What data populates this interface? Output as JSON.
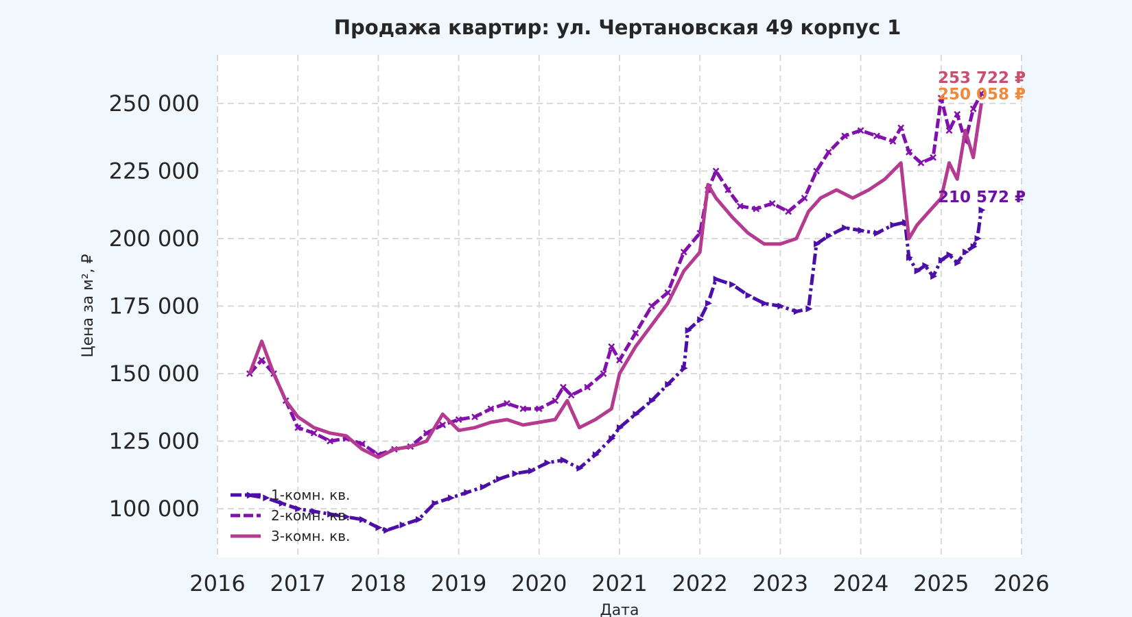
{
  "chart_data": {
    "type": "line",
    "title": "Продажа квартир: ул. Чертановская 49 корпус 1",
    "xlabel": "Дата",
    "ylabel": "Цена за м², ₽",
    "xlim": [
      2016.0,
      2026.0
    ],
    "ylim": [
      82000,
      268000
    ],
    "x_ticks": [
      2016,
      2017,
      2018,
      2019,
      2020,
      2021,
      2022,
      2023,
      2024,
      2025,
      2026
    ],
    "x_tick_labels": [
      "2016",
      "2017",
      "2018",
      "2019",
      "2020",
      "2021",
      "2022",
      "2023",
      "2024",
      "2025",
      "2026"
    ],
    "y_ticks": [
      100000,
      125000,
      150000,
      175000,
      200000,
      225000,
      250000
    ],
    "y_tick_labels": [
      "100 000",
      "125 000",
      "150 000",
      "175 000",
      "200 000",
      "225 000",
      "250 000"
    ],
    "grid": true,
    "legend_position": "bottom-left",
    "series": [
      {
        "name": "1-комн. кв.",
        "color": "#4b0ea6",
        "style": "dashdot",
        "marker": "triangle",
        "x": [
          2016.4,
          2016.6,
          2016.8,
          2017.0,
          2017.2,
          2017.4,
          2017.6,
          2017.8,
          2018.0,
          2018.1,
          2018.3,
          2018.5,
          2018.7,
          2018.9,
          2019.1,
          2019.3,
          2019.5,
          2019.7,
          2019.9,
          2020.1,
          2020.3,
          2020.5,
          2020.7,
          2020.9,
          2021.0,
          2021.2,
          2021.4,
          2021.6,
          2021.8,
          2021.85,
          2022.0,
          2022.1,
          2022.2,
          2022.4,
          2022.6,
          2022.8,
          2023.0,
          2023.2,
          2023.35,
          2023.45,
          2023.6,
          2023.8,
          2024.0,
          2024.2,
          2024.4,
          2024.55,
          2024.6,
          2024.7,
          2024.8,
          2024.9,
          2025.0,
          2025.1,
          2025.2,
          2025.3,
          2025.4,
          2025.45,
          2025.5
        ],
        "y": [
          105000,
          104000,
          102000,
          100000,
          99000,
          98000,
          97000,
          96000,
          93000,
          92000,
          94000,
          96000,
          102000,
          104000,
          106000,
          108000,
          111000,
          113000,
          114000,
          117000,
          118000,
          115000,
          120000,
          126000,
          130000,
          135000,
          140000,
          146000,
          152000,
          166000,
          170000,
          176000,
          185000,
          183000,
          179000,
          176000,
          175000,
          173000,
          174000,
          198000,
          201000,
          204000,
          203000,
          202000,
          205000,
          206000,
          193000,
          188000,
          190000,
          186000,
          192000,
          194000,
          191000,
          195000,
          197000,
          200000,
          210572
        ]
      },
      {
        "name": "2-комн. кв.",
        "color": "#8210ac",
        "style": "dashed",
        "marker": "x",
        "x": [
          2016.4,
          2016.55,
          2016.7,
          2016.85,
          2017.0,
          2017.2,
          2017.4,
          2017.6,
          2017.8,
          2018.0,
          2018.2,
          2018.4,
          2018.6,
          2018.8,
          2019.0,
          2019.2,
          2019.4,
          2019.6,
          2019.8,
          2020.0,
          2020.2,
          2020.3,
          2020.4,
          2020.6,
          2020.8,
          2020.9,
          2021.0,
          2021.2,
          2021.4,
          2021.6,
          2021.8,
          2022.0,
          2022.1,
          2022.2,
          2022.35,
          2022.5,
          2022.7,
          2022.9,
          2023.1,
          2023.3,
          2023.45,
          2023.6,
          2023.8,
          2024.0,
          2024.2,
          2024.4,
          2024.5,
          2024.6,
          2024.75,
          2024.9,
          2025.0,
          2025.1,
          2025.2,
          2025.3,
          2025.4,
          2025.5
        ],
        "y": [
          150000,
          155000,
          150000,
          140000,
          130000,
          128000,
          125000,
          126000,
          124000,
          120000,
          122000,
          123000,
          128000,
          131000,
          133000,
          134000,
          137000,
          139000,
          137000,
          137000,
          140000,
          145000,
          142000,
          145000,
          150000,
          160000,
          155000,
          165000,
          175000,
          180000,
          195000,
          202000,
          218000,
          225000,
          218000,
          212000,
          211000,
          213000,
          210000,
          215000,
          225000,
          232000,
          238000,
          240000,
          238000,
          236000,
          241000,
          232000,
          228000,
          230000,
          252000,
          240000,
          246000,
          236000,
          248000,
          253722
        ]
      },
      {
        "name": "3-комн. кв.",
        "color": "#b43b90",
        "style": "solid",
        "marker": "none",
        "x": [
          2016.4,
          2016.55,
          2016.7,
          2016.85,
          2017.0,
          2017.2,
          2017.4,
          2017.6,
          2017.8,
          2018.0,
          2018.2,
          2018.4,
          2018.6,
          2018.8,
          2019.0,
          2019.2,
          2019.4,
          2019.6,
          2019.8,
          2020.0,
          2020.2,
          2020.35,
          2020.5,
          2020.7,
          2020.9,
          2021.0,
          2021.2,
          2021.4,
          2021.6,
          2021.8,
          2022.0,
          2022.1,
          2022.2,
          2022.4,
          2022.6,
          2022.8,
          2023.0,
          2023.2,
          2023.35,
          2023.5,
          2023.7,
          2023.9,
          2024.1,
          2024.3,
          2024.5,
          2024.6,
          2024.7,
          2024.85,
          2025.0,
          2025.1,
          2025.2,
          2025.3,
          2025.4,
          2025.45,
          2025.5
        ],
        "y": [
          150000,
          162000,
          150000,
          140000,
          134000,
          130000,
          128000,
          127000,
          122000,
          119000,
          122000,
          123000,
          125000,
          135000,
          129000,
          130000,
          132000,
          133000,
          131000,
          132000,
          133000,
          140000,
          130000,
          133000,
          137000,
          150000,
          160000,
          168000,
          176000,
          188000,
          195000,
          220000,
          215000,
          208000,
          202000,
          198000,
          198000,
          200000,
          210000,
          215000,
          218000,
          215000,
          218000,
          222000,
          228000,
          200000,
          205000,
          210000,
          215000,
          228000,
          222000,
          240000,
          230000,
          240000,
          250058
        ]
      }
    ],
    "end_labels": [
      {
        "text": "253 722 ₽",
        "color": "#c8506e",
        "value": 253722
      },
      {
        "text": "250 058 ₽",
        "color": "#ee8a3d",
        "value": 250058
      },
      {
        "text": "210 572 ₽",
        "color": "#6e10a6",
        "value": 210572
      }
    ]
  }
}
